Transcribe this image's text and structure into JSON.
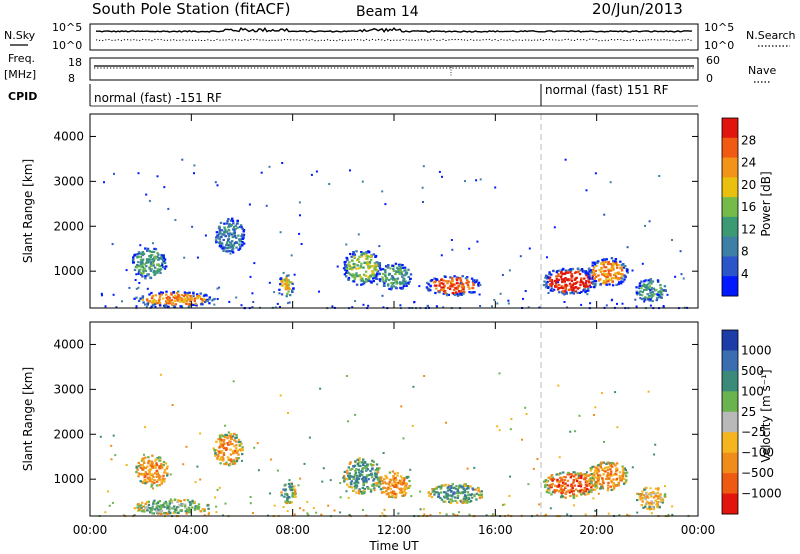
{
  "chart_data": [
    {
      "type": "line",
      "header": {
        "station": "South Pole Station (fitACF)",
        "beam": "Beam 14",
        "date": "20/Jun/2013"
      },
      "panel": "sky_noise_search_noise",
      "left_label": "N.Sky",
      "right_label": "N.Search",
      "yticks_left": [
        "10^5",
        "10^0"
      ],
      "yticks_right": [
        "10^5",
        "10^0"
      ],
      "log_scale": true
    },
    {
      "type": "line",
      "panel": "frequency_nave",
      "left_label_top": "Freq.",
      "left_label_bottom": "[MHz]",
      "right_label": "Nave",
      "yticks_left": [
        "18",
        "8"
      ],
      "yticks_right": [
        "60",
        "0"
      ]
    },
    {
      "type": "table",
      "panel": "cpid",
      "label": "CPID",
      "segments": [
        {
          "text": "normal (fast) -151 RF",
          "start_hour": 0
        },
        {
          "text": "normal (fast) 151 RF",
          "start_hour": 18
        }
      ]
    },
    {
      "type": "heatmap",
      "panel": "power",
      "ylabel": "Slant Range [km]",
      "yticks": [
        1000,
        2000,
        3000,
        4000
      ],
      "ylim": [
        180,
        4500
      ],
      "colorbar_label": "Power [dB]",
      "colorbar_ticks": [
        "4",
        "8",
        "12",
        "16",
        "20",
        "24",
        "28"
      ],
      "colors": [
        "#0019ff",
        "#2b55c8",
        "#3e7fa5",
        "#3b9a74",
        "#75bb4a",
        "#e8c00d",
        "#f29417",
        "#f05a12",
        "#e0150d"
      ],
      "features": [
        {
          "x_hour": 2.3,
          "range_km": 1200,
          "width_h": 1.4,
          "height_km": 700,
          "level": 3
        },
        {
          "x_hour": 3.3,
          "range_km": 400,
          "width_h": 3.2,
          "height_km": 350,
          "level": 6
        },
        {
          "x_hour": 5.5,
          "range_km": 1800,
          "width_h": 1.2,
          "height_km": 800,
          "level": 2
        },
        {
          "x_hour": 7.7,
          "range_km": 700,
          "width_h": 0.6,
          "height_km": 500,
          "level": 5
        },
        {
          "x_hour": 10.7,
          "range_km": 1100,
          "width_h": 1.5,
          "height_km": 800,
          "level": 4
        },
        {
          "x_hour": 12.0,
          "range_km": 900,
          "width_h": 1.3,
          "height_km": 600,
          "level": 3
        },
        {
          "x_hour": 14.3,
          "range_km": 700,
          "width_h": 2.2,
          "height_km": 450,
          "level": 7
        },
        {
          "x_hour": 18.9,
          "range_km": 800,
          "width_h": 2.2,
          "height_km": 600,
          "level": 8
        },
        {
          "x_hour": 20.4,
          "range_km": 1000,
          "width_h": 1.6,
          "height_km": 650,
          "level": 6
        },
        {
          "x_hour": 22.1,
          "range_km": 600,
          "width_h": 1.2,
          "height_km": 500,
          "level": 3
        }
      ]
    },
    {
      "type": "heatmap",
      "panel": "velocity",
      "xlabel": "Time UT",
      "xticks": [
        "00:00",
        "04:00",
        "08:00",
        "12:00",
        "16:00",
        "20:00",
        "00:00"
      ],
      "xlim_hours": [
        0,
        24
      ],
      "ylabel": "Slant Range [km]",
      "yticks": [
        1000,
        2000,
        3000,
        4000
      ],
      "ylim": [
        180,
        4500
      ],
      "colorbar_label": "Velocity [m s⁻¹]",
      "colorbar_ticks": [
        "1000",
        "500",
        "100",
        "25",
        "−25",
        "−100",
        "−500",
        "−1000"
      ],
      "colors": [
        "#1c3ca8",
        "#3b6eb0",
        "#3c8a7a",
        "#6ab34f",
        "#b9b9b9",
        "#f5b51f",
        "#f08c1a",
        "#ee5a12",
        "#e3140d"
      ],
      "features": [
        {
          "x_hour": 2.4,
          "range_km": 1200,
          "width_h": 1.3,
          "height_km": 700,
          "level": 6
        },
        {
          "x_hour": 3.2,
          "range_km": 400,
          "width_h": 3.0,
          "height_km": 350,
          "level": 3
        },
        {
          "x_hour": 5.4,
          "range_km": 1700,
          "width_h": 1.2,
          "height_km": 750,
          "level": 6
        },
        {
          "x_hour": 7.8,
          "range_km": 700,
          "width_h": 0.6,
          "height_km": 500,
          "level": 2
        },
        {
          "x_hour": 10.7,
          "range_km": 1100,
          "width_h": 1.5,
          "height_km": 800,
          "level": 2
        },
        {
          "x_hour": 12.0,
          "range_km": 900,
          "width_h": 1.3,
          "height_km": 600,
          "level": 6
        },
        {
          "x_hour": 14.4,
          "range_km": 700,
          "width_h": 2.2,
          "height_km": 450,
          "level": 2
        },
        {
          "x_hour": 18.9,
          "range_km": 900,
          "width_h": 2.2,
          "height_km": 600,
          "level": 7
        },
        {
          "x_hour": 20.4,
          "range_km": 1100,
          "width_h": 1.6,
          "height_km": 650,
          "level": 6
        },
        {
          "x_hour": 22.1,
          "range_km": 600,
          "width_h": 1.2,
          "height_km": 500,
          "level": 5
        }
      ]
    }
  ]
}
